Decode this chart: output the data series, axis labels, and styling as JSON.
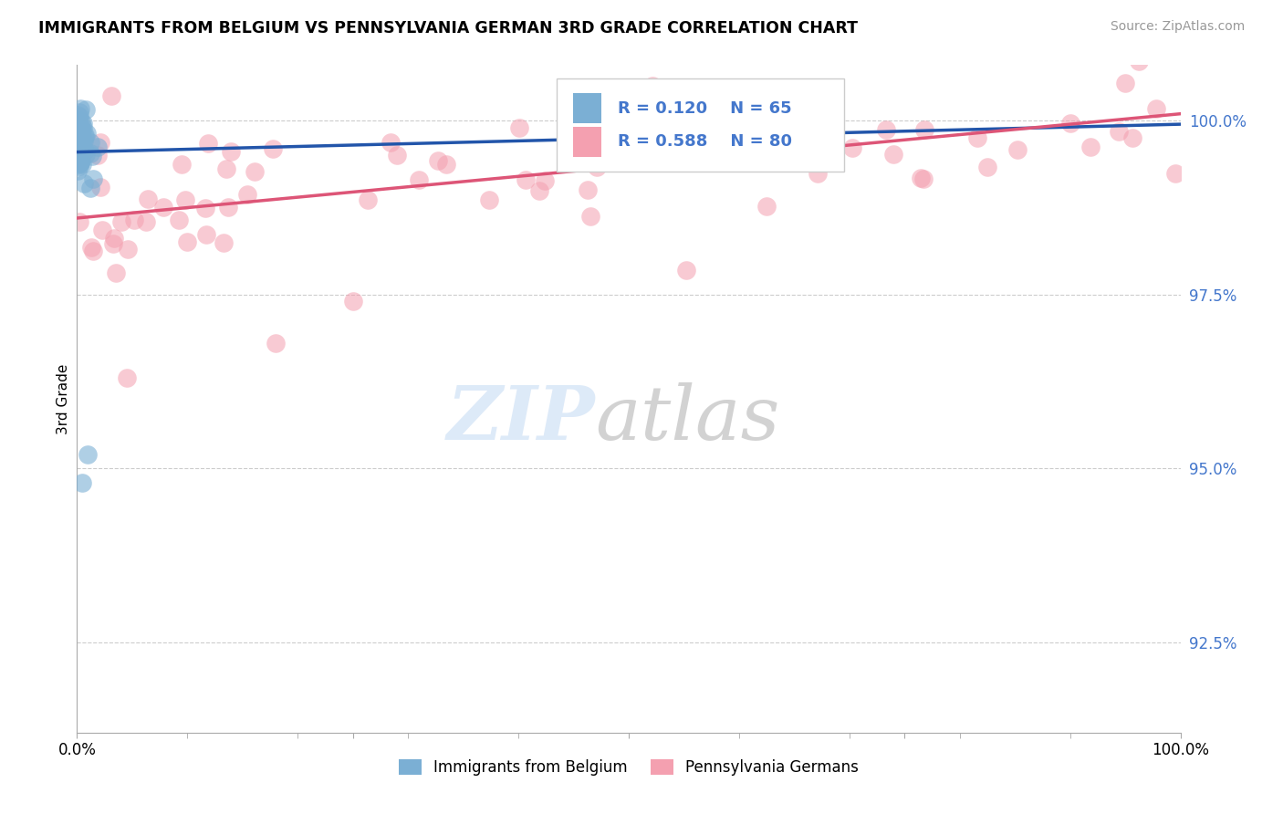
{
  "title": "IMMIGRANTS FROM BELGIUM VS PENNSYLVANIA GERMAN 3RD GRADE CORRELATION CHART",
  "source": "Source: ZipAtlas.com",
  "ylabel": "3rd Grade",
  "ytick_labels": [
    "92.5%",
    "95.0%",
    "97.5%",
    "100.0%"
  ],
  "ytick_values": [
    92.5,
    95.0,
    97.5,
    100.0
  ],
  "ylim": [
    91.2,
    100.8
  ],
  "xlim": [
    0.0,
    100.0
  ],
  "legend_blue_label": "Immigrants from Belgium",
  "legend_pink_label": "Pennsylvania Germans",
  "R_blue": 0.12,
  "N_blue": 65,
  "R_pink": 0.588,
  "N_pink": 80,
  "blue_color": "#7BAFD4",
  "pink_color": "#F4A0B0",
  "blue_line_color": "#2255AA",
  "pink_line_color": "#DD5577",
  "blue_line_x": [
    0.0,
    100.0
  ],
  "blue_line_y": [
    99.55,
    99.95
  ],
  "pink_line_x": [
    0.0,
    100.0
  ],
  "pink_line_y": [
    98.6,
    100.1
  ]
}
